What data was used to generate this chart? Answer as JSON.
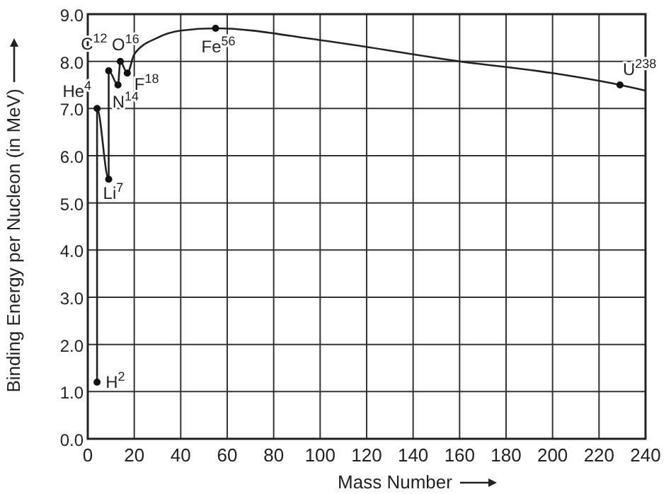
{
  "chart_data": {
    "type": "line",
    "xlabel": "Mass Number",
    "ylabel": "Binding Energy per Nucleon (in MeV)",
    "xlim": [
      0,
      240
    ],
    "xticks": [
      0,
      20,
      40,
      60,
      80,
      100,
      120,
      140,
      160,
      180,
      200,
      220,
      240
    ],
    "ylim": [
      0,
      9
    ],
    "yticks": [
      {
        "value": 0,
        "label": "0.0"
      },
      {
        "value": 1,
        "label": "1.0"
      },
      {
        "value": 2,
        "label": "2.0"
      },
      {
        "value": 3,
        "label": "3.0"
      },
      {
        "value": 4,
        "label": "4.0"
      },
      {
        "value": 5,
        "label": "5.0"
      },
      {
        "value": 6,
        "label": "6.0"
      },
      {
        "value": 7,
        "label": "7.0"
      },
      {
        "value": 8,
        "label": "8.0"
      },
      {
        "value": 9,
        "label": "9.0"
      }
    ],
    "grid": true,
    "series": [
      {
        "color": "#222222",
        "marker": "none",
        "x": [
          4,
          4,
          9,
          9,
          13,
          14,
          17,
          20,
          30,
          40,
          55,
          100,
          160,
          200,
          229,
          240
        ],
        "values": [
          1.2,
          7.0,
          5.5,
          7.8,
          7.5,
          8.0,
          7.75,
          8.15,
          8.5,
          8.65,
          8.7,
          8.45,
          8.0,
          7.75,
          7.5,
          7.38
        ]
      },
      {
        "type": "scatter",
        "color": "#111111",
        "marker": "circle",
        "x": [
          4,
          4,
          9,
          9,
          13,
          14,
          17,
          55,
          229
        ],
        "values": [
          1.2,
          7.0,
          5.5,
          7.8,
          7.5,
          8.0,
          7.75,
          8.7,
          7.5
        ]
      }
    ],
    "annotations": [
      {
        "text": "H$^{2}$",
        "x": 4,
        "y": 1.2
      },
      {
        "text": "He$^{4}$",
        "x": 4,
        "y": 7.0
      },
      {
        "text": "Li$^{7}$",
        "x": 9,
        "y": 5.5
      },
      {
        "text": "C$^{12}$",
        "x": 9,
        "y": 7.8
      },
      {
        "text": "N$^{14}$",
        "x": 13,
        "y": 7.5
      },
      {
        "text": "O$^{16}$",
        "x": 14,
        "y": 8.0
      },
      {
        "text": "F$^{18}$",
        "x": 17,
        "y": 7.75
      },
      {
        "text": "Fe$^{56}$",
        "x": 55,
        "y": 8.7
      },
      {
        "text": "U$^{238}$",
        "x": 229,
        "y": 7.5
      }
    ]
  }
}
